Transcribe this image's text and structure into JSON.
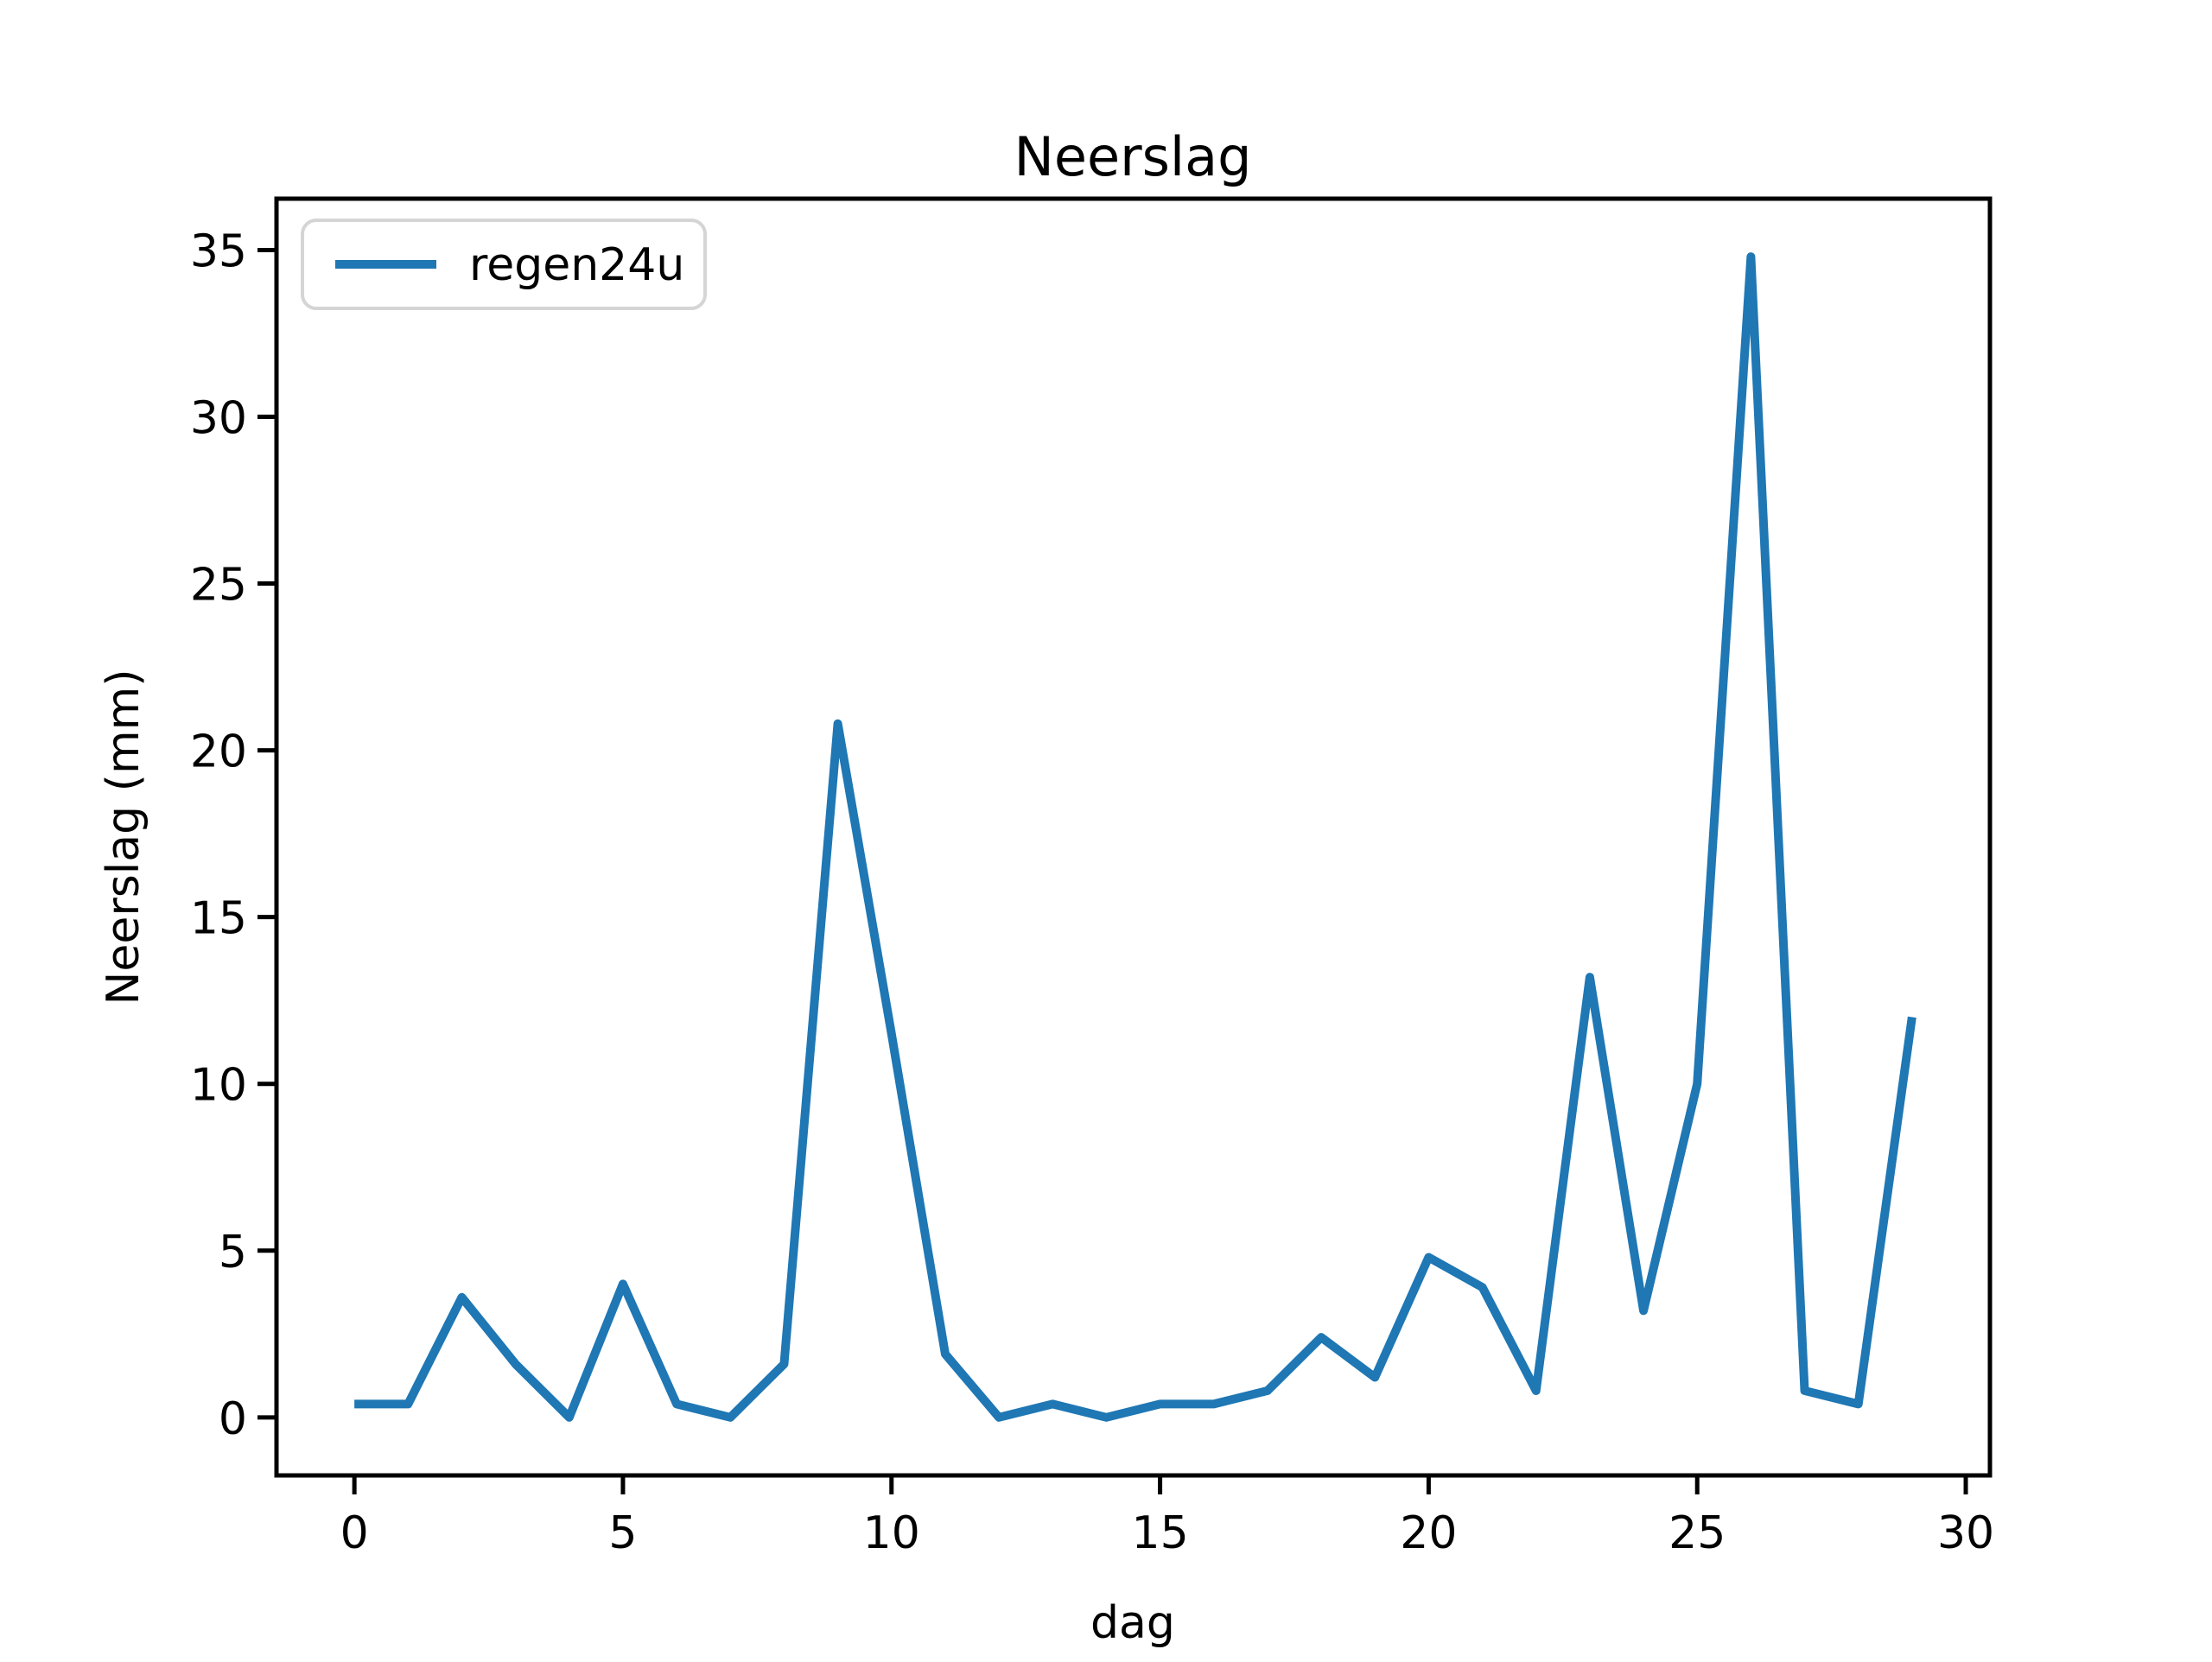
{
  "chart_data": {
    "type": "line",
    "title": "Neerslag",
    "xlabel": "dag",
    "ylabel": "Neerslag (mm)",
    "grid": false,
    "legend_position": "upper left",
    "xlim": [
      -1.45,
      30.45
    ],
    "ylim": [
      -1.74,
      36.54
    ],
    "x_ticks": [
      0,
      5,
      10,
      15,
      20,
      25,
      30
    ],
    "y_ticks": [
      0,
      5,
      10,
      15,
      20,
      25,
      30,
      35
    ],
    "series": [
      {
        "name": "regen24u",
        "color": "#1f77b4",
        "x": [
          0,
          1,
          2,
          3,
          4,
          5,
          6,
          7,
          8,
          9,
          10,
          11,
          12,
          13,
          14,
          15,
          16,
          17,
          18,
          19,
          20,
          21,
          22,
          23,
          24,
          25,
          26,
          27,
          28,
          29
        ],
        "y": [
          0.4,
          0.4,
          3.6,
          1.6,
          0.0,
          4.0,
          0.4,
          0.0,
          1.6,
          20.8,
          11.5,
          1.9,
          0.0,
          0.4,
          0.0,
          0.4,
          0.4,
          0.8,
          2.4,
          1.2,
          4.8,
          3.9,
          0.8,
          13.2,
          3.2,
          10.0,
          34.8,
          0.8,
          0.4,
          12.0
        ]
      }
    ]
  },
  "colors": {
    "line": "#1f77b4",
    "spine": "#000000",
    "tick": "#000000",
    "legend_border": "#d5d5d5",
    "background": "#ffffff"
  }
}
